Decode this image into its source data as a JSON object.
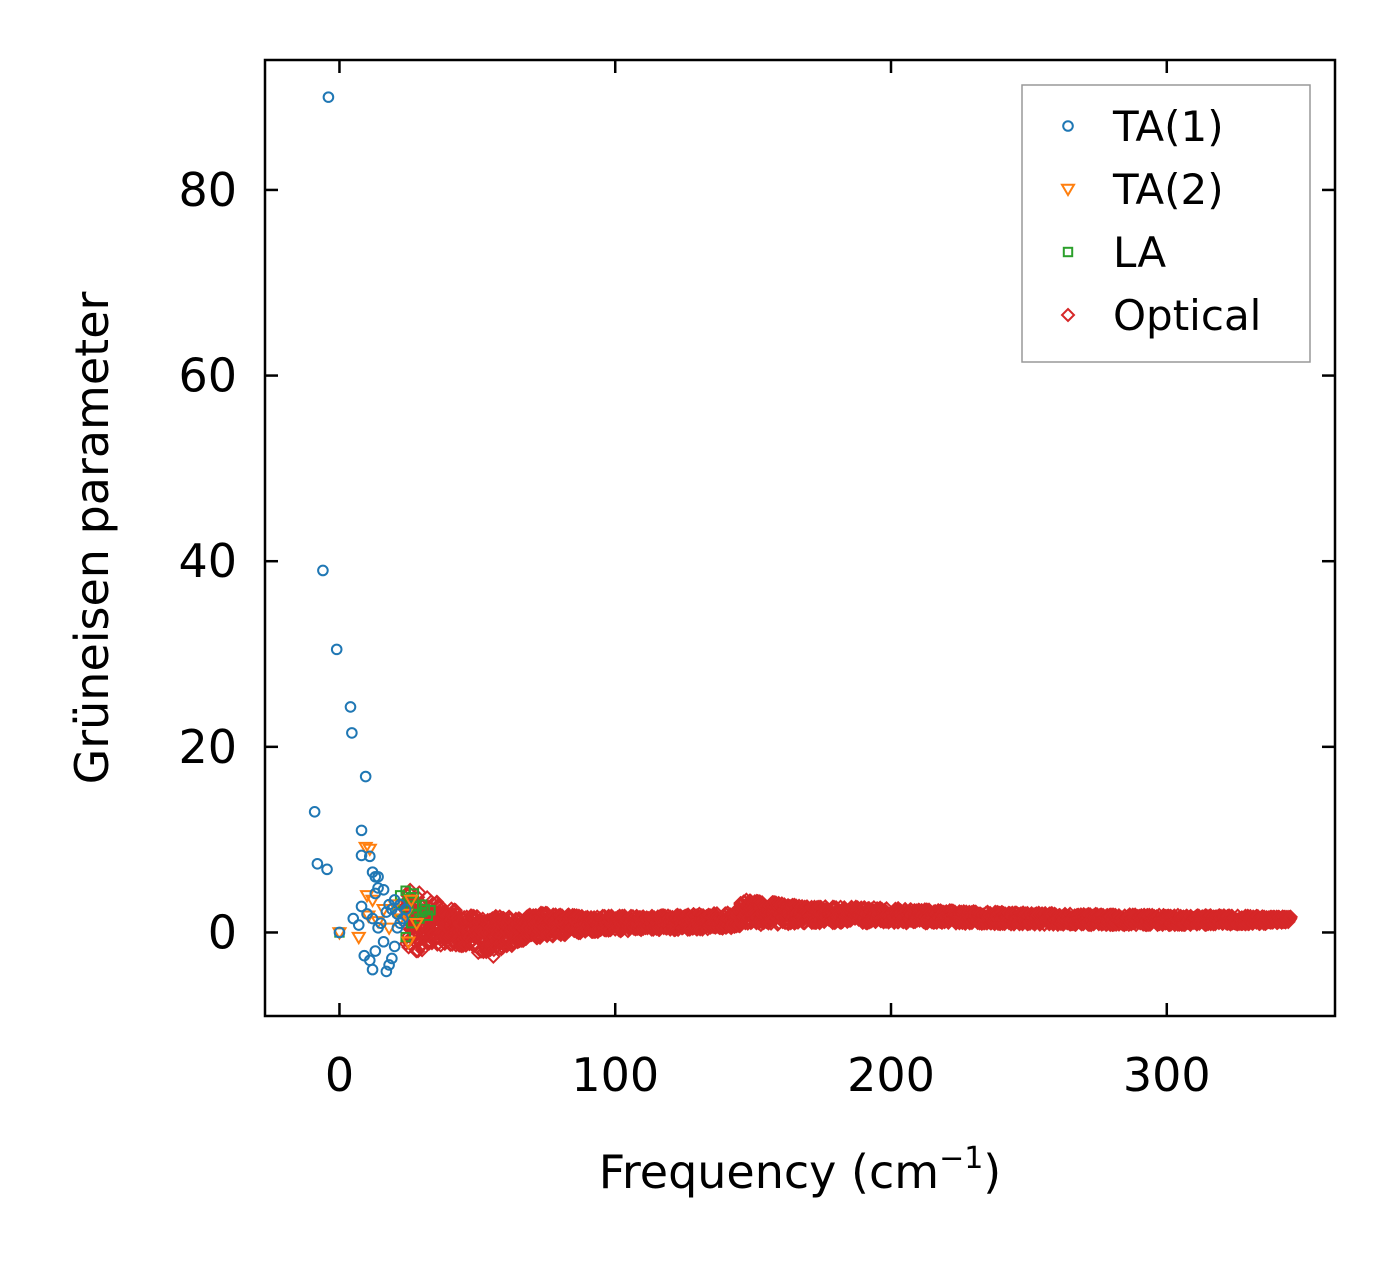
{
  "chart_data": {
    "type": "scatter",
    "title": "",
    "xlabel": "Frequency (cm",
    "xlabel_sup": "−1",
    "xlabel_close": ")",
    "ylabel": "Grüneisen parameter",
    "xlim": [
      -27,
      361
    ],
    "ylim": [
      -9,
      94
    ],
    "xticks": [
      0,
      100,
      200,
      300
    ],
    "yticks": [
      0,
      20,
      40,
      60,
      80
    ],
    "legend_position": "top-right",
    "series": [
      {
        "name": "TA(1)",
        "marker": "circle",
        "color": "#1f77b4",
        "points": [
          [
            -4,
            90
          ],
          [
            -6,
            39
          ],
          [
            -1,
            30.5
          ],
          [
            4,
            24.3
          ],
          [
            4.5,
            21.5
          ],
          [
            9.5,
            16.8
          ],
          [
            -9,
            13
          ],
          [
            8,
            11
          ],
          [
            -8,
            7.4
          ],
          [
            -4.5,
            6.8
          ],
          [
            8,
            8.3
          ],
          [
            11,
            8.2
          ],
          [
            12,
            6.5
          ],
          [
            13,
            6
          ],
          [
            14,
            6
          ],
          [
            14,
            4.8
          ],
          [
            13,
            4.2
          ],
          [
            16,
            4.6
          ],
          [
            8,
            2.8
          ],
          [
            10,
            2
          ],
          [
            12,
            1.5
          ],
          [
            15,
            1
          ],
          [
            17,
            2.2
          ],
          [
            18,
            3
          ],
          [
            19,
            2.5
          ],
          [
            20,
            3.5
          ],
          [
            21,
            2
          ],
          [
            22,
            3
          ],
          [
            23,
            1.5
          ],
          [
            24,
            2.5
          ],
          [
            16,
            -1
          ],
          [
            13,
            -2
          ],
          [
            11,
            -3
          ],
          [
            12,
            -4
          ],
          [
            9,
            -2.5
          ],
          [
            17,
            -4.2
          ],
          [
            18,
            -3.5
          ],
          [
            19,
            -2.8
          ],
          [
            20,
            -1.5
          ],
          [
            14,
            0.5
          ],
          [
            5,
            1.5
          ],
          [
            7,
            0.8
          ],
          [
            0,
            0
          ],
          [
            21,
            0.5
          ],
          [
            22,
            1
          ]
        ]
      },
      {
        "name": "TA(2)",
        "marker": "triangle-down",
        "color": "#ff7f0e",
        "points": [
          [
            9.5,
            9.2
          ],
          [
            11,
            9
          ],
          [
            7,
            -0.5
          ],
          [
            0,
            0
          ],
          [
            10,
            4
          ],
          [
            12,
            3.5
          ],
          [
            16,
            2.5
          ],
          [
            20,
            3
          ],
          [
            22,
            1.5
          ],
          [
            24,
            2
          ],
          [
            26,
            3.5
          ],
          [
            28,
            1
          ],
          [
            25,
            -1
          ],
          [
            18,
            0.5
          ],
          [
            14,
            1.2
          ],
          [
            10.5,
            1.8
          ]
        ]
      },
      {
        "name": "LA",
        "marker": "square",
        "color": "#2ca02c",
        "points": [
          [
            0,
            0
          ],
          [
            22,
            4
          ],
          [
            24,
            4.5
          ],
          [
            26,
            3.8
          ],
          [
            27,
            4.2
          ],
          [
            25,
            2.5
          ],
          [
            28,
            2.8
          ],
          [
            30,
            2.2
          ],
          [
            31,
            2.5
          ],
          [
            32,
            1.8
          ],
          [
            33,
            2.4
          ],
          [
            24,
            -0.5
          ],
          [
            26,
            1
          ],
          [
            29,
            1.5
          ],
          [
            23,
            3
          ],
          [
            27,
            2
          ],
          [
            30,
            3
          ],
          [
            21,
            2.2
          ]
        ]
      },
      {
        "name": "Optical",
        "marker": "diamond",
        "color": "#d62728",
        "band": [
          [
            24,
            -2.5,
            5
          ],
          [
            35,
            -1.5,
            3.5
          ],
          [
            45,
            -1.5,
            2
          ],
          [
            55,
            -2.8,
            1.8
          ],
          [
            65,
            -1,
            1.8
          ],
          [
            75,
            -0.5,
            2.2
          ],
          [
            90,
            0,
            1.8
          ],
          [
            110,
            0.2,
            1.8
          ],
          [
            130,
            0.3,
            2
          ],
          [
            144,
            0.5,
            2.2
          ],
          [
            146,
            0.8,
            3.6
          ],
          [
            160,
            0.8,
            3.2
          ],
          [
            170,
            1,
            2.8
          ],
          [
            190,
            1,
            2.8
          ],
          [
            210,
            1,
            2.5
          ],
          [
            240,
            0.9,
            2.2
          ],
          [
            270,
            0.8,
            2
          ],
          [
            300,
            0.8,
            1.9
          ],
          [
            330,
            0.9,
            1.8
          ],
          [
            345,
            1,
            1.7
          ]
        ]
      }
    ]
  }
}
